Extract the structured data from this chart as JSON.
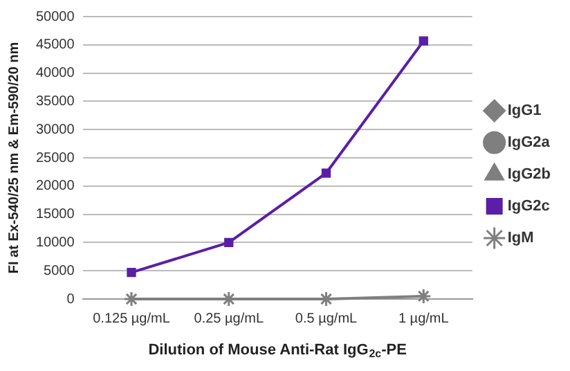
{
  "chart_data": {
    "type": "line",
    "xlabel": "Dilution of Mouse Anti-Rat IgG$_{2c}$-PE",
    "ylabel": "FI at Ex-540/25 nm & Em-590/20 nm",
    "categories": [
      "0.125 µg/mL",
      "0.25 µg/mL",
      "0.5 µg/mL",
      "1 µg/mL"
    ],
    "series": [
      {
        "name": "IgG1",
        "color": "#7f7f7f",
        "marker": "diamond",
        "values": [
          null,
          null,
          null,
          null
        ]
      },
      {
        "name": "IgG2a",
        "color": "#7f7f7f",
        "marker": "circle",
        "values": [
          null,
          null,
          null,
          null
        ]
      },
      {
        "name": "IgG2b",
        "color": "#7f7f7f",
        "marker": "triangle",
        "values": [
          null,
          null,
          null,
          null
        ]
      },
      {
        "name": "IgG2c",
        "color": "#5a1fa6",
        "marker": "square",
        "values": [
          4700,
          10000,
          22300,
          45700
        ]
      },
      {
        "name": "IgM",
        "color": "#7f7f7f",
        "marker": "cross",
        "values": [
          0,
          0,
          0,
          500
        ]
      }
    ],
    "ylim": [
      0,
      50000
    ],
    "yticks": [
      0,
      5000,
      10000,
      15000,
      20000,
      25000,
      30000,
      35000,
      40000,
      45000,
      50000
    ],
    "grid": "y",
    "legend": "right",
    "line_style": "solid"
  }
}
